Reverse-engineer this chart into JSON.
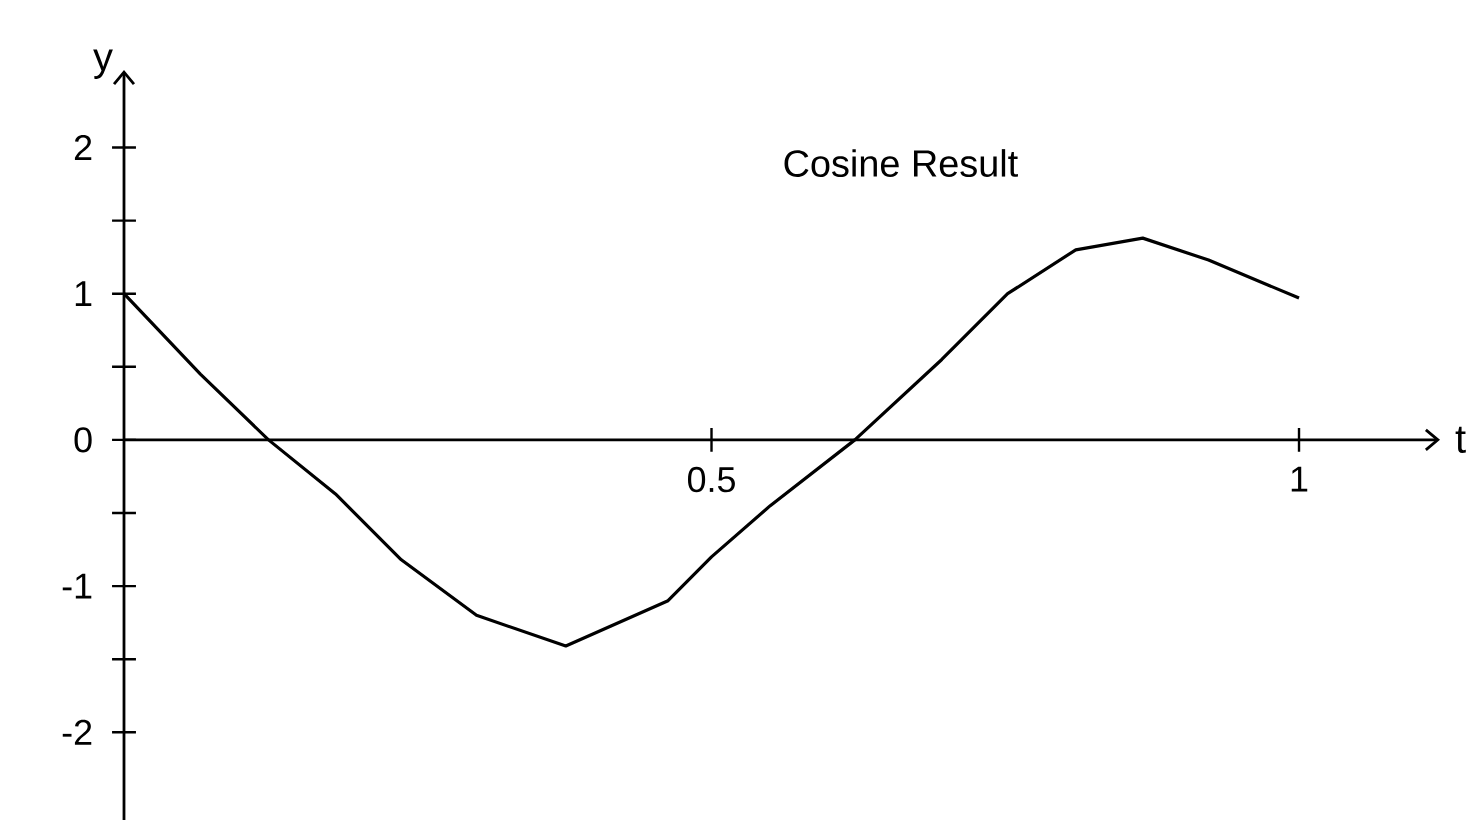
{
  "chart_data": {
    "type": "line",
    "title": "Cosine Result",
    "xlabel": "t",
    "ylabel": "y",
    "x": [
      0,
      0.065,
      0.123,
      0.18,
      0.236,
      0.3,
      0.376,
      0.463,
      0.5,
      0.55,
      0.622,
      0.696,
      0.752,
      0.81,
      0.867,
      0.923,
      1.0
    ],
    "values": [
      1,
      0.45,
      0,
      -0.37,
      -0.82,
      -1.2,
      -1.41,
      -1.1,
      -0.8,
      -0.45,
      0,
      0.55,
      1.0,
      1.3,
      1.38,
      1.23,
      0.97
    ],
    "color": "#000000",
    "marker": "none",
    "line_style": "solid",
    "xlim": [
      0,
      1.12
    ],
    "ylim": [
      -2.6,
      2.53
    ],
    "xticks": [
      0.5,
      1
    ],
    "yticks": [
      -2,
      {
        "value": -1.5,
        "label": null
      },
      -1,
      {
        "value": -0.5,
        "label": null
      },
      0,
      {
        "value": 0.5,
        "label": null
      },
      1,
      {
        "value": 1.5,
        "label": null
      },
      2
    ]
  }
}
